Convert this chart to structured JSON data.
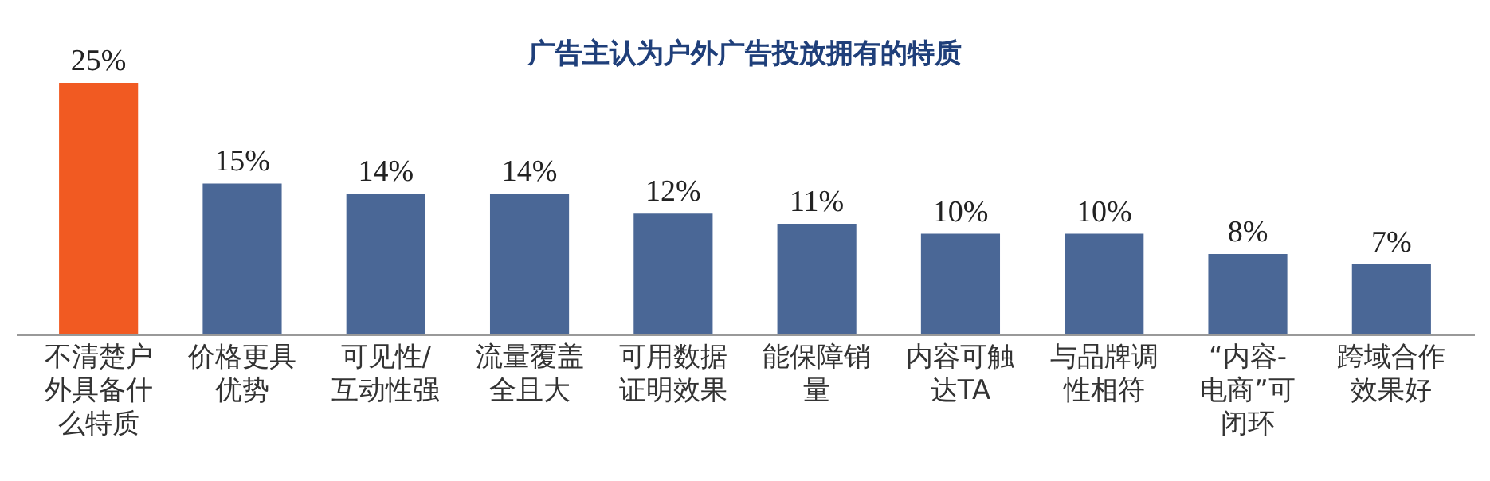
{
  "chart_data": {
    "type": "bar",
    "title": "广告主认为户外广告投放拥有的特质",
    "categories": [
      "不清楚户外具备什么特质",
      "价格更具优势",
      "可见性/互动性强",
      "流量覆盖全且大",
      "可用数据证明效果",
      "能保障销量",
      "内容可触达TA",
      "与品牌调性相符",
      "“内容-电商”可闭环",
      "跨域合作效果好"
    ],
    "values": [
      25,
      15,
      14,
      14,
      12,
      11,
      10,
      10,
      8,
      7
    ],
    "colors": [
      "#f15a22",
      "#4a6796",
      "#4a6796",
      "#4a6796",
      "#4a6796",
      "#4a6796",
      "#4a6796",
      "#4a6796",
      "#4a6796",
      "#4a6796"
    ],
    "value_labels": [
      "25%",
      "15%",
      "14%",
      "14%",
      "12%",
      "11%",
      "10%",
      "10%",
      "8%",
      "7%"
    ],
    "legend": false
  }
}
